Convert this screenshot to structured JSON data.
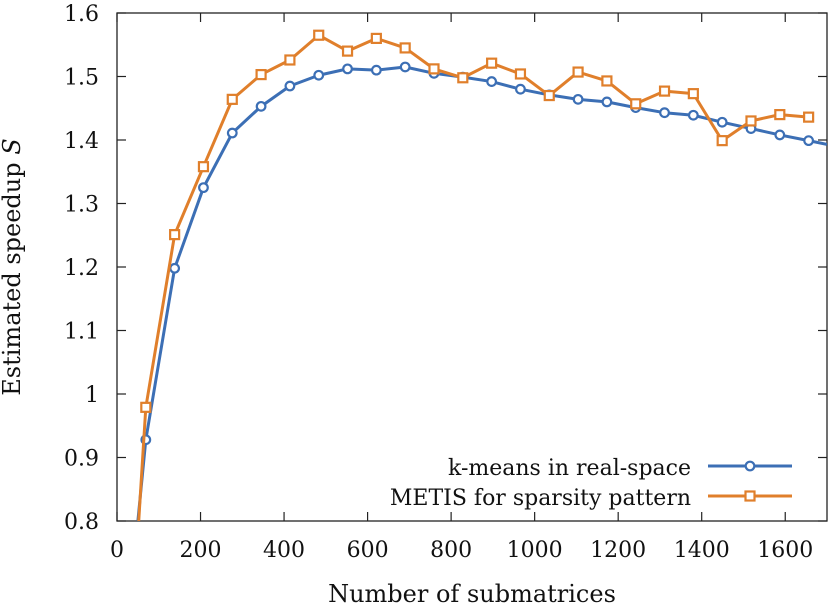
{
  "chart_data": {
    "type": "line",
    "xlabel": "Number of submatrices",
    "ylabel": "Estimated speedup",
    "ylabel_symbol": "S",
    "xlim": [
      0,
      1700
    ],
    "ylim": [
      0.8,
      1.6
    ],
    "xticks": [
      0,
      200,
      400,
      600,
      800,
      1000,
      1200,
      1400,
      1600
    ],
    "yticks": [
      0.8,
      0.9,
      1,
      1.1,
      1.2,
      1.3,
      1.4,
      1.5,
      1.6
    ],
    "ytick_labels": [
      "0.8",
      "0.9",
      "1",
      "1.1",
      "1.2",
      "1.3",
      "1.4",
      "1.5",
      "1.6"
    ],
    "legend_position": "bottom-right",
    "series": [
      {
        "name": "k-means in real-space",
        "color": "#3c6fb5",
        "marker": "circle",
        "x": [
          50,
          69,
          138,
          207,
          276,
          345,
          414,
          483,
          552,
          621,
          690,
          759,
          828,
          897,
          966,
          1035,
          1104,
          1173,
          1242,
          1311,
          1380,
          1449,
          1518,
          1587,
          1656,
          1700
        ],
        "y": [
          0.8,
          0.928,
          1.198,
          1.325,
          1.411,
          1.453,
          1.485,
          1.502,
          1.512,
          1.51,
          1.515,
          1.505,
          1.499,
          1.492,
          1.48,
          1.471,
          1.464,
          1.46,
          1.451,
          1.443,
          1.439,
          1.428,
          1.418,
          1.408,
          1.399,
          1.393
        ]
      },
      {
        "name": "METIS for sparsity pattern",
        "color": "#e07f2b",
        "marker": "square",
        "x": [
          52,
          69,
          138,
          207,
          276,
          345,
          414,
          483,
          552,
          621,
          690,
          759,
          828,
          897,
          966,
          1035,
          1104,
          1173,
          1242,
          1311,
          1380,
          1449,
          1518,
          1587,
          1656
        ],
        "y": [
          0.8,
          0.979,
          1.251,
          1.358,
          1.464,
          1.503,
          1.526,
          1.565,
          1.54,
          1.56,
          1.545,
          1.512,
          1.498,
          1.521,
          1.504,
          1.47,
          1.507,
          1.493,
          1.457,
          1.477,
          1.473,
          1.399,
          1.43,
          1.44,
          1.436
        ]
      }
    ]
  }
}
